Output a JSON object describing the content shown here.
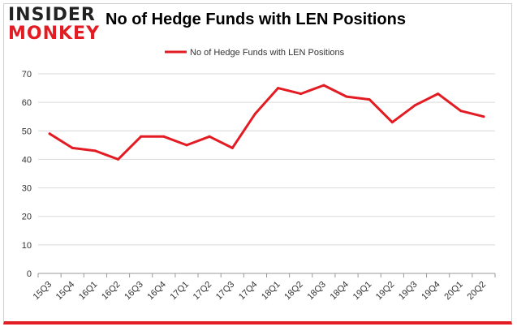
{
  "logo": {
    "line1": "INSIDER",
    "line2": "MONKEY"
  },
  "colors": {
    "series": "#e31b23",
    "grid": "#d9d9d9",
    "axis": "#999999",
    "text": "#333333"
  },
  "chart_data": {
    "type": "line",
    "title": "No of Hedge Funds with LEN Positions",
    "xlabel": "",
    "ylabel": "",
    "ylim": [
      0,
      70
    ],
    "yticks": [
      0,
      10,
      20,
      30,
      40,
      50,
      60,
      70
    ],
    "grid": true,
    "legend": "top-center",
    "categories": [
      "15Q3",
      "15Q4",
      "16Q1",
      "16Q2",
      "16Q3",
      "16Q4",
      "17Q1",
      "17Q2",
      "17Q3",
      "17Q4",
      "18Q1",
      "18Q2",
      "18Q3",
      "18Q4",
      "19Q1",
      "19Q2",
      "19Q3",
      "19Q4",
      "20Q1",
      "20Q2"
    ],
    "series": [
      {
        "name": "No of Hedge Funds with LEN Positions",
        "values": [
          49,
          44,
          43,
          40,
          48,
          48,
          45,
          48,
          44,
          56,
          65,
          63,
          66,
          62,
          61,
          53,
          59,
          63,
          57,
          55
        ]
      }
    ]
  }
}
